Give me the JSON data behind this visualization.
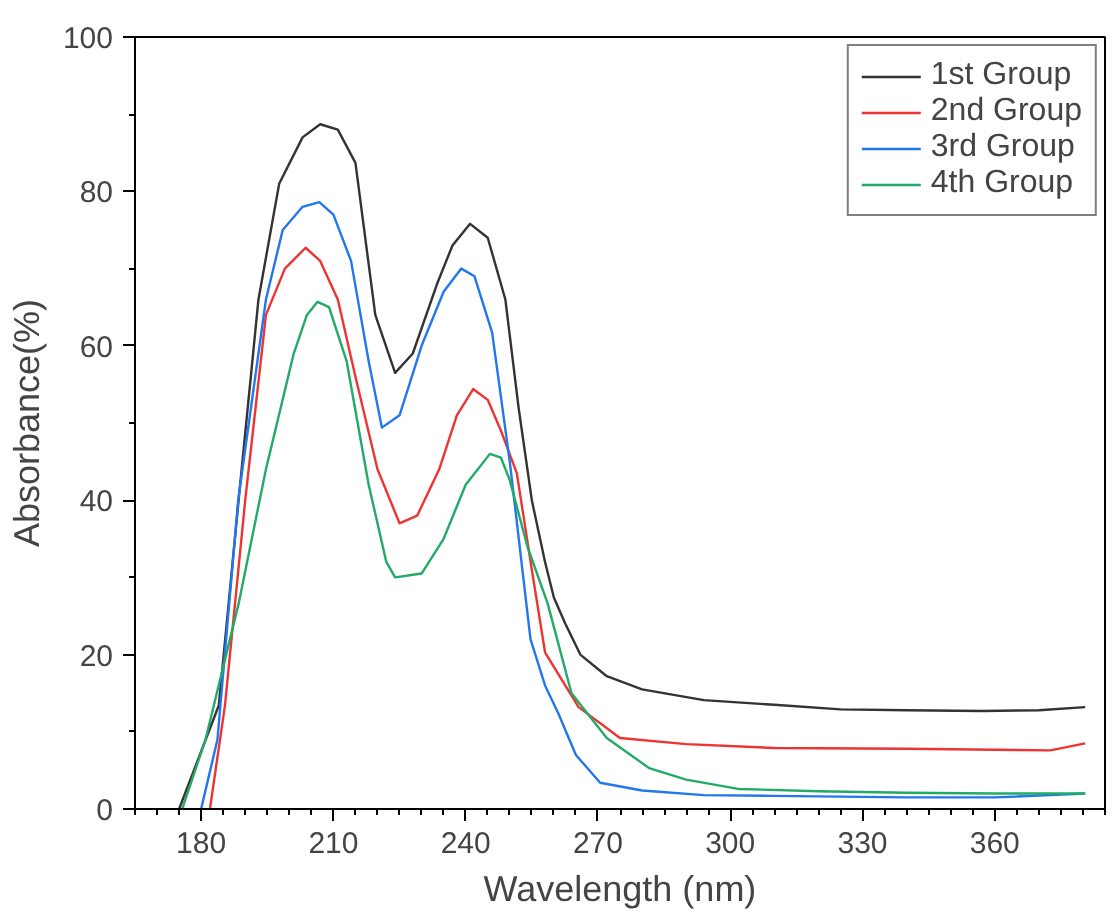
{
  "chart_data": {
    "type": "line",
    "xlabel": "Wavelength (nm)",
    "ylabel": "Absorbance(%)",
    "xlim": [
      165,
      385
    ],
    "xticks": [
      180,
      210,
      240,
      270,
      300,
      330,
      360
    ],
    "ylim": [
      0,
      100
    ],
    "yticks": [
      0,
      20,
      40,
      60,
      80,
      100
    ],
    "grid": false,
    "legend": "top right",
    "marker": "none",
    "line_style": "solid",
    "series": [
      {
        "name": "1st Group",
        "color": "#333333",
        "x": [
          175,
          184,
          188.5,
          193,
          197.7,
          203,
          207,
          211,
          215,
          219.5,
          224,
          228,
          233.5,
          237,
          241,
          245,
          249,
          252,
          255,
          258,
          260,
          262.6,
          266,
          272,
          280,
          294,
          310,
          325,
          340,
          357,
          370,
          380.5
        ],
        "values": [
          0,
          13.4,
          40,
          66,
          81,
          87,
          88.7,
          88,
          83.7,
          64,
          56.5,
          59,
          68,
          73,
          75.8,
          74,
          66,
          52,
          40,
          32,
          27.4,
          24,
          20,
          17.2,
          15.5,
          14.1,
          13.5,
          12.9,
          12.8,
          12.7,
          12.8,
          13.2
        ]
      },
      {
        "name": "2nd Group",
        "color": "#ee3333",
        "x": [
          182,
          185.4,
          190,
          194.7,
          199,
          203.7,
          207,
          211,
          215,
          220,
          225,
          229,
          234,
          238,
          241.7,
          245,
          248,
          251.6,
          255,
          258,
          265.6,
          275,
          290,
          310,
          340,
          372.6,
          380.5
        ],
        "values": [
          0,
          13.4,
          40,
          64,
          70,
          72.7,
          71,
          66,
          56,
          44,
          37,
          38,
          44,
          51,
          54.4,
          53,
          49,
          43.5,
          31,
          20.3,
          13.2,
          9.2,
          8.4,
          7.9,
          7.8,
          7.6,
          8.5
        ]
      },
      {
        "name": "3rd Group",
        "color": "#2277ee",
        "x": [
          180,
          183.7,
          188.4,
          194.7,
          198.5,
          203,
          206.8,
          210,
          214,
          218,
          221,
          225,
          230,
          235,
          239,
          242,
          246,
          250,
          254.7,
          258,
          261,
          265,
          270.5,
          280,
          294,
          310,
          340,
          360,
          380.5
        ],
        "values": [
          0,
          9,
          40,
          66,
          75,
          78,
          78.6,
          77,
          71,
          58,
          49.4,
          51,
          60,
          67,
          70,
          69,
          61.7,
          45,
          22,
          16,
          12.4,
          7,
          3.4,
          2.4,
          1.8,
          1.7,
          1.5,
          1.5,
          2
        ]
      },
      {
        "name": "4th Group",
        "color": "#22aa66",
        "x": [
          175.7,
          181,
          188.5,
          194.7,
          201,
          204,
          206.4,
          209,
          213,
          218,
          222,
          224,
          230,
          235,
          240,
          245.5,
          248,
          250,
          254,
          258.6,
          264,
          272,
          281.6,
          290,
          301.8,
          320,
          340,
          360,
          380.5
        ],
        "values": [
          0,
          9,
          26.6,
          44,
          59,
          64,
          65.7,
          65,
          58,
          42,
          32,
          30,
          30.5,
          35,
          42,
          46,
          45.5,
          42.6,
          34,
          26.6,
          15,
          9.2,
          5.3,
          3.8,
          2.6,
          2.3,
          2.1,
          2,
          2
        ]
      }
    ]
  }
}
